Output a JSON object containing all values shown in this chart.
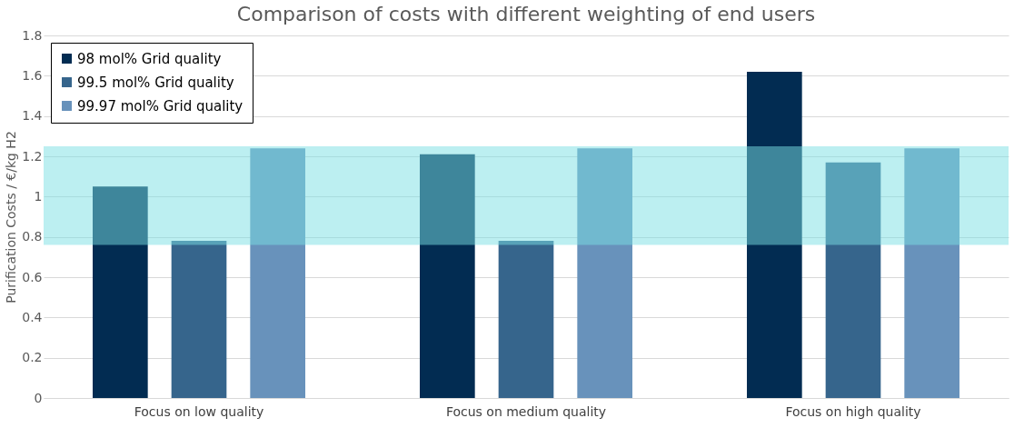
{
  "chart_data": {
    "type": "bar",
    "title": "Comparison of costs with different weighting of end users",
    "ylabel": "Purification Costs / €/kg H2",
    "categories": [
      "Focus on low quality",
      "Focus on medium quality",
      "Focus on high quality"
    ],
    "series": [
      {
        "name": "98 mol% Grid quality",
        "color": "#022c52",
        "values": [
          1.05,
          1.21,
          1.62
        ]
      },
      {
        "name": "99.5 mol% Grid quality",
        "color": "#36658c",
        "values": [
          0.78,
          0.78,
          1.17
        ]
      },
      {
        "name": "99.97 mol% Grid quality",
        "color": "#6892bb",
        "values": [
          1.24,
          1.24,
          1.24
        ]
      }
    ],
    "bands": [
      {
        "axis": "y",
        "from": 0.76,
        "to": 1.25,
        "color": "#7adfe4"
      }
    ],
    "ylim": [
      0,
      1.8
    ],
    "yticks": [
      0,
      0.2,
      0.4,
      0.6,
      0.8,
      1,
      1.2,
      1.4,
      1.6,
      1.8
    ],
    "grid": "y",
    "legend": "top left"
  }
}
